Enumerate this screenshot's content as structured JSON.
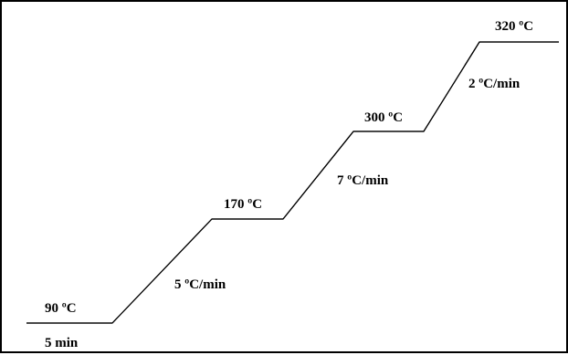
{
  "colors": {
    "line": "#000000",
    "text": "#000000",
    "background": "#ffffff"
  },
  "temperature_program": {
    "holds": [
      {
        "temperature": "90 ºC",
        "duration": "5 min"
      },
      {
        "temperature": "170 ºC"
      },
      {
        "temperature": "300 ºC"
      },
      {
        "temperature": "320 ºC"
      }
    ],
    "ramps": [
      {
        "rate": "5 ºC/min"
      },
      {
        "rate": "7 ºC/min"
      },
      {
        "rate": "2 ºC/min"
      }
    ]
  }
}
